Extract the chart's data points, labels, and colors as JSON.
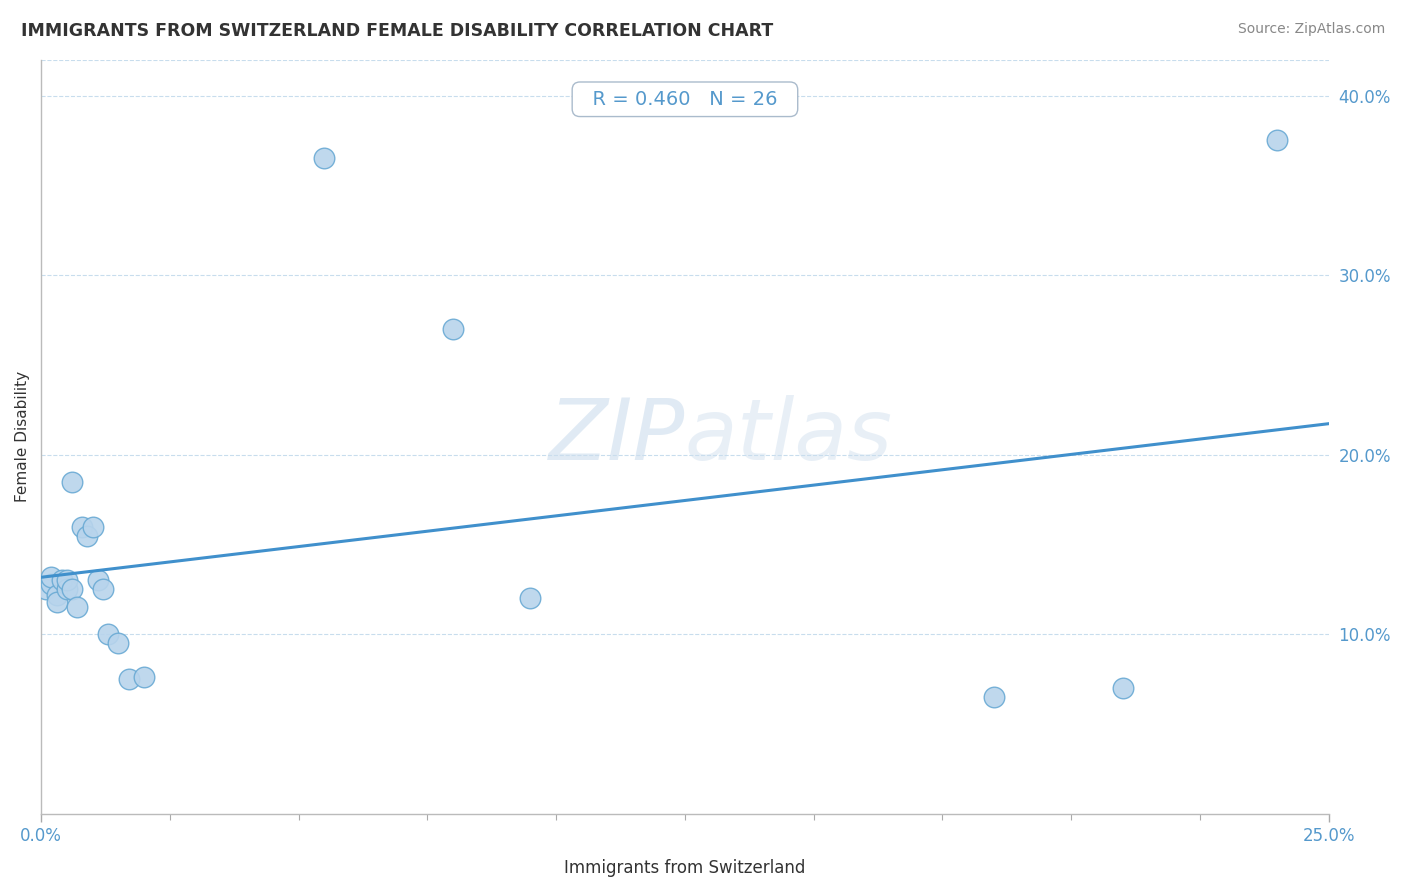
{
  "title": "IMMIGRANTS FROM SWITZERLAND FEMALE DISABILITY CORRELATION CHART",
  "source": "Source: ZipAtlas.com",
  "xlabel": "Immigrants from Switzerland",
  "ylabel": "Female Disability",
  "xlim": [
    0.0,
    0.25
  ],
  "ylim": [
    0.0,
    0.42
  ],
  "xticks": [
    0.0,
    0.25
  ],
  "xtick_labels": [
    "0.0%",
    "25.0%"
  ],
  "ytick_labels": [
    "10.0%",
    "20.0%",
    "30.0%",
    "40.0%"
  ],
  "yticks": [
    0.1,
    0.2,
    0.3,
    0.4
  ],
  "R": "0.460",
  "N": "26",
  "scatter_color": "#b8d4ec",
  "scatter_edge_color": "#6aaad4",
  "line_color": "#4090cc",
  "scatter_x": [
    0.001,
    0.002,
    0.002,
    0.003,
    0.003,
    0.004,
    0.005,
    0.005,
    0.006,
    0.006,
    0.007,
    0.008,
    0.009,
    0.01,
    0.011,
    0.012,
    0.013,
    0.015,
    0.017,
    0.02,
    0.055,
    0.08,
    0.095,
    0.185,
    0.21,
    0.24
  ],
  "scatter_y": [
    0.125,
    0.128,
    0.132,
    0.122,
    0.118,
    0.13,
    0.125,
    0.13,
    0.185,
    0.125,
    0.115,
    0.16,
    0.155,
    0.16,
    0.13,
    0.125,
    0.1,
    0.095,
    0.075,
    0.076,
    0.365,
    0.27,
    0.12,
    0.065,
    0.07,
    0.375
  ],
  "background_color": "#ffffff",
  "title_color": "#333333",
  "axis_color": "#5599cc",
  "tick_color": "#5599cc",
  "grid_color": "#c8dded",
  "grid_style": "--",
  "grid_lw": 0.8
}
